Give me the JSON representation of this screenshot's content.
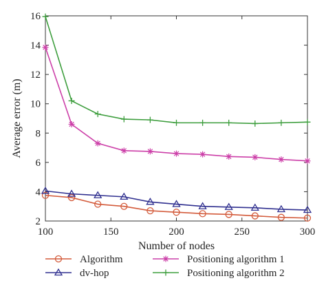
{
  "chart_data": {
    "type": "line",
    "xlabel": "Number of nodes",
    "ylabel": "Average error (m)",
    "xlim": [
      100,
      300
    ],
    "ylim": [
      2,
      16
    ],
    "x_ticks": [
      100,
      150,
      200,
      250,
      300
    ],
    "y_ticks": [
      2,
      4,
      6,
      8,
      10,
      12,
      14,
      16
    ],
    "grid": false,
    "legend_position": "bottom",
    "x": [
      100,
      120,
      140,
      160,
      180,
      200,
      220,
      240,
      260,
      280,
      300
    ],
    "series": [
      {
        "name": "Algorithm",
        "marker": "circle",
        "color": "#d35a3a",
        "values": [
          3.75,
          3.6,
          3.15,
          3.0,
          2.7,
          2.6,
          2.5,
          2.45,
          2.35,
          2.25,
          2.2
        ]
      },
      {
        "name": "dv-hop",
        "marker": "triangle",
        "color": "#2f2f8f",
        "values": [
          4.05,
          3.85,
          3.75,
          3.65,
          3.3,
          3.15,
          3.0,
          2.95,
          2.9,
          2.8,
          2.75
        ]
      },
      {
        "name": "Positioning algorithm 1",
        "marker": "asterisk",
        "color": "#cc3fa8",
        "values": [
          13.85,
          8.6,
          7.3,
          6.8,
          6.75,
          6.6,
          6.55,
          6.4,
          6.35,
          6.2,
          6.1
        ]
      },
      {
        "name": "Positioning algorithm 2",
        "marker": "plus",
        "color": "#3c9d3c",
        "values": [
          15.95,
          10.2,
          9.3,
          8.95,
          8.9,
          8.7,
          8.7,
          8.7,
          8.65,
          8.7,
          8.75
        ]
      }
    ]
  }
}
